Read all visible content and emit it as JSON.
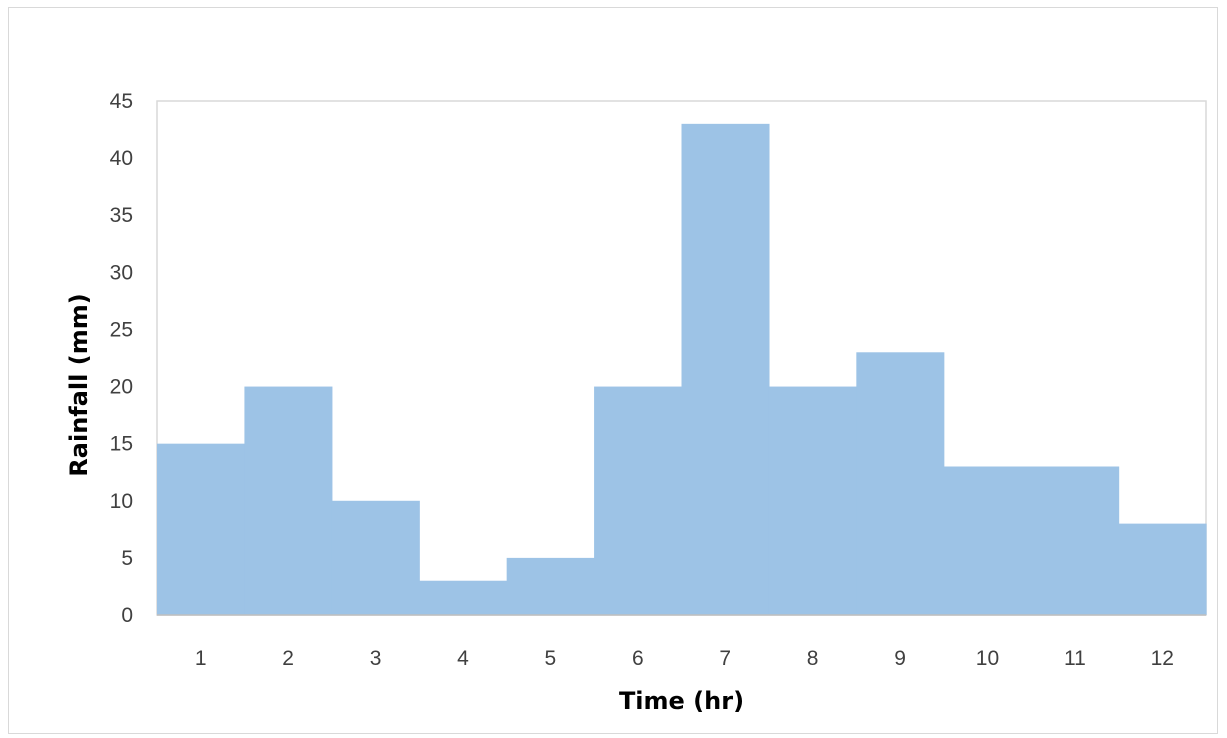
{
  "chart_data": {
    "type": "area",
    "step": true,
    "title": "",
    "xlabel": "Time (hr)",
    "ylabel": "Rainfall (mm)",
    "categories": [
      "1",
      "2",
      "3",
      "4",
      "5",
      "6",
      "7",
      "8",
      "9",
      "10",
      "11",
      "12"
    ],
    "values": [
      15,
      20,
      10,
      3,
      5,
      20,
      43,
      20,
      23,
      13,
      13,
      8
    ],
    "ylim": [
      0,
      45
    ],
    "yticks": [
      0,
      5,
      10,
      15,
      20,
      25,
      30,
      35,
      40,
      45
    ],
    "grid": false,
    "legend": "none",
    "colors": {
      "fill": "#9dc3e6",
      "axis": "#bfbfbf",
      "frame": "#d9d9d9"
    }
  }
}
